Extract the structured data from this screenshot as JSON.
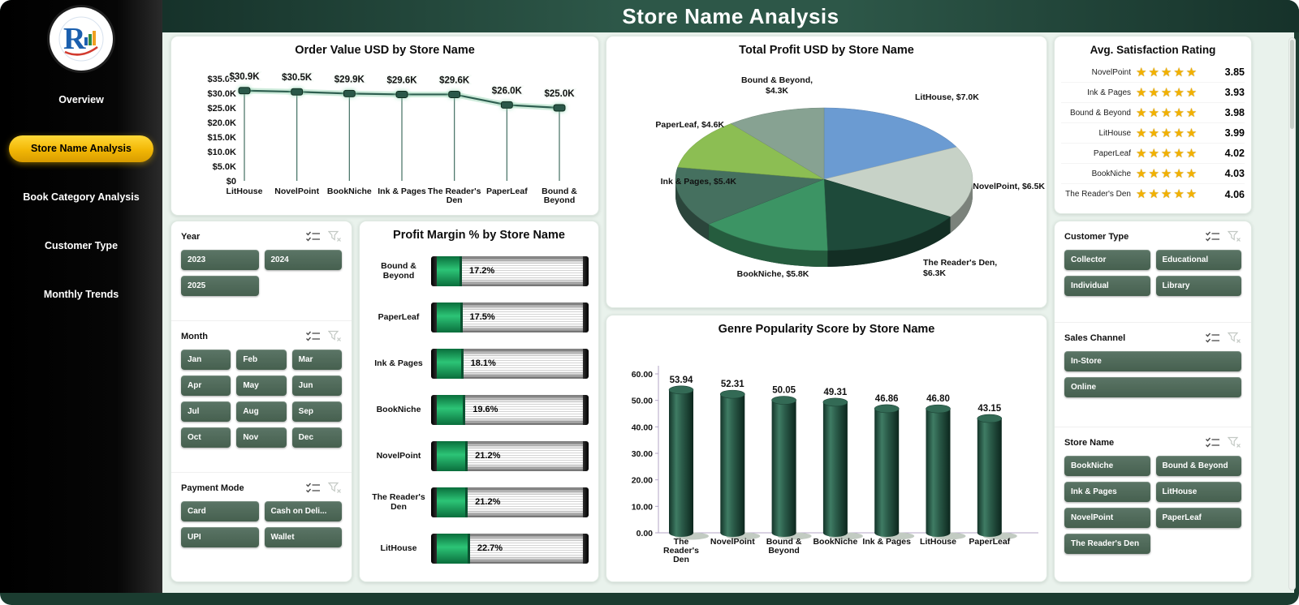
{
  "header": {
    "title": "Store Name Analysis"
  },
  "sidebar": {
    "items": [
      {
        "label": "Overview",
        "active": false
      },
      {
        "label": "Store Name Analysis",
        "active": true
      },
      {
        "label": "Book Category Analysis",
        "active": false
      },
      {
        "label": "Customer Type",
        "active": false
      },
      {
        "label": "Monthly Trends",
        "active": false
      }
    ]
  },
  "icons": {
    "star": "★"
  },
  "colors": {
    "header_green": "#1d3d31",
    "sidebar_black": "#000000",
    "active_nav_yellow": "#f2b705",
    "canvas_bg": "#e9f2ec",
    "slicer_button_green": "#4d675a",
    "line_green": "#2e5f50",
    "cylinder_green": "#1d4a3b",
    "star_gold": "#f2b100",
    "margin_fill_green": "#12a356"
  },
  "chart_data": [
    {
      "type": "line",
      "title": "Order Value USD by Store Name",
      "categories": [
        "LitHouse",
        "NovelPoint",
        "BookNiche",
        "Ink & Pages",
        "The Reader's Den",
        "PaperLeaf",
        "Bound & Beyond"
      ],
      "values": [
        30900,
        30500,
        29900,
        29600,
        29600,
        26000,
        25000
      ],
      "labels": [
        "$30.9K",
        "$30.5K",
        "$29.9K",
        "$29.6K",
        "$29.6K",
        "$26.0K",
        "$25.0K"
      ],
      "ylim": [
        0,
        35000
      ],
      "yticks": [
        "$35.0K",
        "$30.0K",
        "$25.0K",
        "$20.0K",
        "$15.0K",
        "$10.0K",
        "$5.0K",
        "$0"
      ],
      "grid": false,
      "legend": false
    },
    {
      "type": "pie",
      "title": "Total Profit USD by Store Name",
      "slices": [
        {
          "name": "LitHouse",
          "value": 7000,
          "label": "LitHouse, $7.0K",
          "color": "#6b9bd2"
        },
        {
          "name": "NovelPoint",
          "value": 6500,
          "label": "NovelPoint, $6.5K",
          "color": "#c7d2c7"
        },
        {
          "name": "The Reader's Den",
          "value": 6300,
          "label": "The Reader's Den, $6.3K",
          "color": "#1e4a3a"
        },
        {
          "name": "BookNiche",
          "value": 5800,
          "label": "BookNiche, $5.8K",
          "color": "#3c9464"
        },
        {
          "name": "Ink & Pages",
          "value": 5400,
          "label": "Ink & Pages, $5.4K",
          "color": "#45705f"
        },
        {
          "name": "PaperLeaf",
          "value": 4600,
          "label": "PaperLeaf, $4.6K",
          "color": "#8cbe53"
        },
        {
          "name": "Bound & Beyond",
          "value": 4300,
          "label": "Bound & Beyond, $4.3K",
          "color": "#87a292"
        }
      ]
    },
    {
      "type": "bar",
      "orientation": "horizontal",
      "title": "Profit Margin % by Store Name",
      "categories": [
        "Bound & Beyond",
        "PaperLeaf",
        "Ink & Pages",
        "BookNiche",
        "NovelPoint",
        "The Reader's Den",
        "LitHouse"
      ],
      "values": [
        17.2,
        17.5,
        18.1,
        19.6,
        21.2,
        21.2,
        22.7
      ],
      "labels": [
        "17.2%",
        "17.5%",
        "18.1%",
        "19.6%",
        "21.2%",
        "21.2%",
        "22.7%"
      ],
      "xlim": [
        0,
        100
      ]
    },
    {
      "type": "bar",
      "title": "Genre Popularity Score by Store Name",
      "categories": [
        "The Reader's Den",
        "NovelPoint",
        "Bound & Beyond",
        "BookNiche",
        "Ink & Pages",
        "LitHouse",
        "PaperLeaf"
      ],
      "values": [
        53.94,
        52.31,
        50.05,
        49.31,
        46.86,
        46.8,
        43.15
      ],
      "labels": [
        "53.94",
        "52.31",
        "50.05",
        "49.31",
        "46.86",
        "46.80",
        "43.15"
      ],
      "ylim": [
        0,
        60
      ],
      "yticks": [
        "60.00",
        "50.00",
        "40.00",
        "30.00",
        "20.00",
        "10.00",
        "0.00"
      ],
      "grid": false
    }
  ],
  "satisfaction": {
    "title": "Avg. Satisfaction Rating",
    "rows": [
      {
        "name": "NovelPoint",
        "value": "3.85"
      },
      {
        "name": "Ink & Pages",
        "value": "3.93"
      },
      {
        "name": "Bound & Beyond",
        "value": "3.98"
      },
      {
        "name": "LitHouse",
        "value": "3.99"
      },
      {
        "name": "PaperLeaf",
        "value": "4.02"
      },
      {
        "name": "BookNiche",
        "value": "4.03"
      },
      {
        "name": "The Reader's Den",
        "value": "4.06"
      }
    ]
  },
  "slicers": {
    "year": {
      "title": "Year",
      "options": [
        "2023",
        "2024",
        "2025"
      ]
    },
    "month": {
      "title": "Month",
      "options": [
        "Jan",
        "Feb",
        "Mar",
        "Apr",
        "May",
        "Jun",
        "Jul",
        "Aug",
        "Sep",
        "Oct",
        "Nov",
        "Dec"
      ]
    },
    "payment": {
      "title": "Payment Mode",
      "options": [
        "Card",
        "Cash on Deli...",
        "UPI",
        "Wallet"
      ]
    },
    "customer_type": {
      "title": "Customer Type",
      "options": [
        "Collector",
        "Educational",
        "Individual",
        "Library"
      ]
    },
    "sales_channel": {
      "title": "Sales Channel",
      "options": [
        "In-Store",
        "Online"
      ]
    },
    "store_name": {
      "title": "Store Name",
      "options": [
        "BookNiche",
        "Bound & Beyond",
        "Ink & Pages",
        "LitHouse",
        "NovelPoint",
        "PaperLeaf",
        "The Reader's Den"
      ]
    }
  }
}
